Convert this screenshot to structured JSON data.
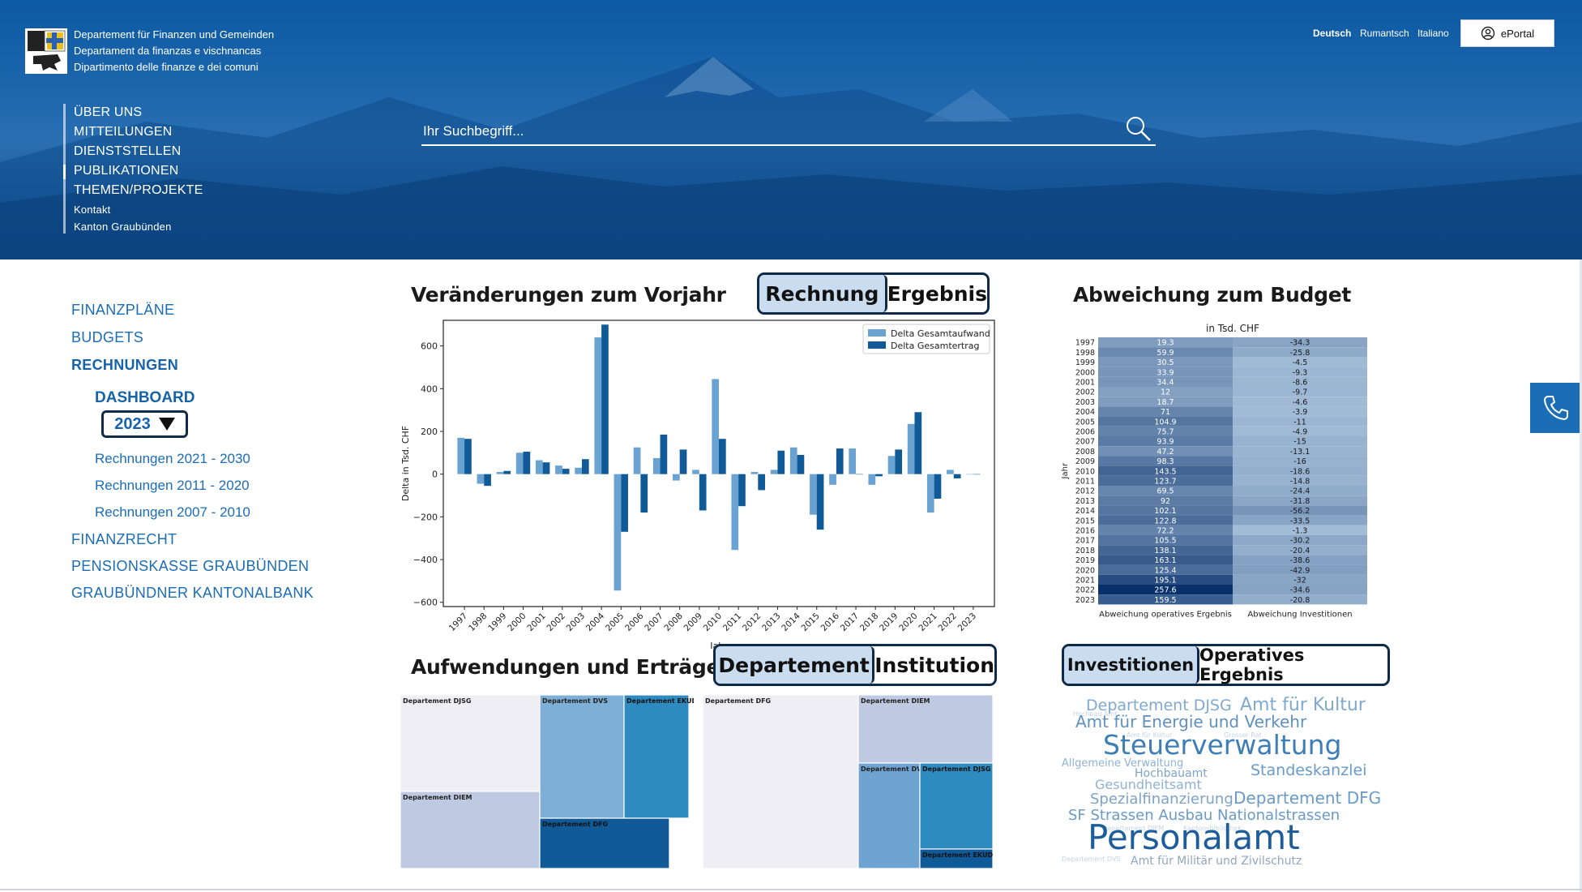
{
  "header": {
    "dept_lines": [
      "Departement für Finanzen und Gemeinden",
      "Departament da finanzas e vischnancas",
      "Dipartimento delle finanze e dei comuni"
    ],
    "languages": [
      "Deutsch",
      "Rumantsch",
      "Italiano"
    ],
    "eportal_label": "ePortal",
    "nav": [
      "ÜBER UNS",
      "MITTEILUNGEN",
      "DIENSTSTELLEN",
      "PUBLIKATIONEN",
      "THEMEN/PROJEKTE",
      "Kontakt",
      "Kanton Graubünden"
    ],
    "search_placeholder": "Ihr Suchbegriff..."
  },
  "sidebar": {
    "items_top": [
      "FINANZPLÄNE",
      "BUDGETS",
      "RECHNUNGEN"
    ],
    "dashboard_label": "DASHBOARD",
    "year_selected": "2023",
    "sub_items": [
      "Rechnungen 2021 - 2030",
      "Rechnungen 2011 - 2020",
      "Rechnungen 2007 - 2010"
    ],
    "items_bottom": [
      "FINANZRECHT",
      "PENSIONSKASSE GRAUBÜNDEN",
      "GRAUBÜNDNER KANTONALBANK"
    ]
  },
  "sections": {
    "vorjahr_title": "Veränderungen zum Vorjahr",
    "vorjahr_toggle": [
      "Rechnung",
      "Ergebnis"
    ],
    "budget_title": "Abweichung zum Budget",
    "aufwand_title": "Aufwendungen und Erträge",
    "aufwand_toggle": [
      "Departement",
      "Institution"
    ],
    "invest_toggle": [
      "Investitionen",
      "Operatives Ergebnis"
    ]
  },
  "chart_data": [
    {
      "type": "bar",
      "xlabel": "Jahr",
      "ylabel": "Delta in Tsd. CHF",
      "ylim": [
        -620,
        720
      ],
      "yticks": [
        -600,
        -400,
        -200,
        0,
        200,
        400,
        600
      ],
      "legend_position": "top-right",
      "categories": [
        "1997",
        "1998",
        "1999",
        "2000",
        "2001",
        "2002",
        "2003",
        "2004",
        "2005",
        "2006",
        "2007",
        "2008",
        "2009",
        "2010",
        "2011",
        "2012",
        "2013",
        "2014",
        "2015",
        "2016",
        "2017",
        "2018",
        "2019",
        "2020",
        "2021",
        "2022",
        "2023"
      ],
      "series": [
        {
          "name": "Delta Gesamtaufwand",
          "color": "#6aa3d2",
          "values": [
            170,
            -45,
            10,
            100,
            65,
            40,
            30,
            640,
            -545,
            125,
            75,
            -30,
            20,
            445,
            -355,
            10,
            20,
            125,
            -190,
            -50,
            120,
            -50,
            85,
            235,
            -180,
            20,
            0
          ]
        },
        {
          "name": "Delta Gesamtertrag",
          "color": "#0f5a97",
          "values": [
            165,
            -55,
            15,
            105,
            55,
            25,
            70,
            700,
            -270,
            -180,
            185,
            115,
            -170,
            165,
            -150,
            -75,
            110,
            90,
            -260,
            120,
            0,
            -10,
            115,
            290,
            -115,
            -20,
            0
          ]
        }
      ]
    },
    {
      "type": "heatmap",
      "title": "in Tsd. CHF",
      "ylabel": "Jahr",
      "columns": [
        "Abweichung operatives Ergebnis",
        "Abweichung Investitionen"
      ],
      "rows": [
        "1997",
        "1998",
        "1999",
        "2000",
        "2001",
        "2002",
        "2003",
        "2004",
        "2005",
        "2006",
        "2007",
        "2008",
        "2009",
        "2010",
        "2011",
        "2012",
        "2013",
        "2014",
        "2015",
        "2016",
        "2017",
        "2018",
        "2019",
        "2020",
        "2021",
        "2022",
        "2023"
      ],
      "col1": [
        "19.3",
        "59.9",
        "30.5",
        "33.9",
        "34.4",
        "12",
        "18.7",
        "71",
        "104.9",
        "75.7",
        "93.9",
        "47.2",
        "98.3",
        "143.5",
        "123.7",
        "69.5",
        "92",
        "102.1",
        "122.8",
        "72.2",
        "105.5",
        "138.1",
        "163.1",
        "125.4",
        "195.1",
        "257.6",
        "159.5"
      ],
      "col2": [
        "-34.3",
        "-25.8",
        "-4.5",
        "-9.3",
        "-8.6",
        "-9.7",
        "-4.6",
        "-3.9",
        "-11",
        "-4.9",
        "-15",
        "-13.1",
        "-16",
        "-18.6",
        "-14.8",
        "-24.4",
        "-31.8",
        "-56.2",
        "-33.5",
        "-1.3",
        "-30.2",
        "-20.4",
        "-38.6",
        "-42.9",
        "-32",
        "-34.6",
        "-20.8"
      ]
    },
    {
      "type": "treemap",
      "panels": [
        [
          {
            "label": "Departement DJSG"
          },
          {
            "label": "Departement DVS"
          },
          {
            "label": "Departement EKUD"
          },
          {
            "label": "Departement DIEM"
          },
          {
            "label": "Departement DFG"
          }
        ],
        [
          {
            "label": "Departement DFG"
          },
          {
            "label": "Departement DIEM"
          },
          {
            "label": "Departement DVS"
          },
          {
            "label": "Departement DJSG"
          },
          {
            "label": "Departement EKUD"
          }
        ]
      ]
    }
  ],
  "wordcloud": [
    {
      "text": "Departement DJSG",
      "color": "#7fa9cf"
    },
    {
      "text": "Amt für Kultur",
      "color": "#7fa9cf"
    },
    {
      "text": "Amt für Energie und Verkehr",
      "color": "#5f91bd"
    },
    {
      "text": "Steuerverwaltung",
      "color": "#3e7eb7"
    },
    {
      "text": "Allgemeine Verwaltung",
      "color": "#8fb2d4"
    },
    {
      "text": "Hochbauamt",
      "color": "#7fa3c6"
    },
    {
      "text": "Standeskanzlei",
      "color": "#6a9ac6"
    },
    {
      "text": "Gesundheitsamt",
      "color": "#8fb2d4"
    },
    {
      "text": "Spezialfinanzierung",
      "color": "#7fa3c6"
    },
    {
      "text": "Departement DFG",
      "color": "#6a9ac6"
    },
    {
      "text": "SF Strassen Ausbau Nationalstrassen",
      "color": "#6a9ac6"
    },
    {
      "text": "Personalamt",
      "color": "#1d5d9b"
    },
    {
      "text": "Amt für Militär und Zivilschutz",
      "color": "#8fa7c0"
    }
  ]
}
